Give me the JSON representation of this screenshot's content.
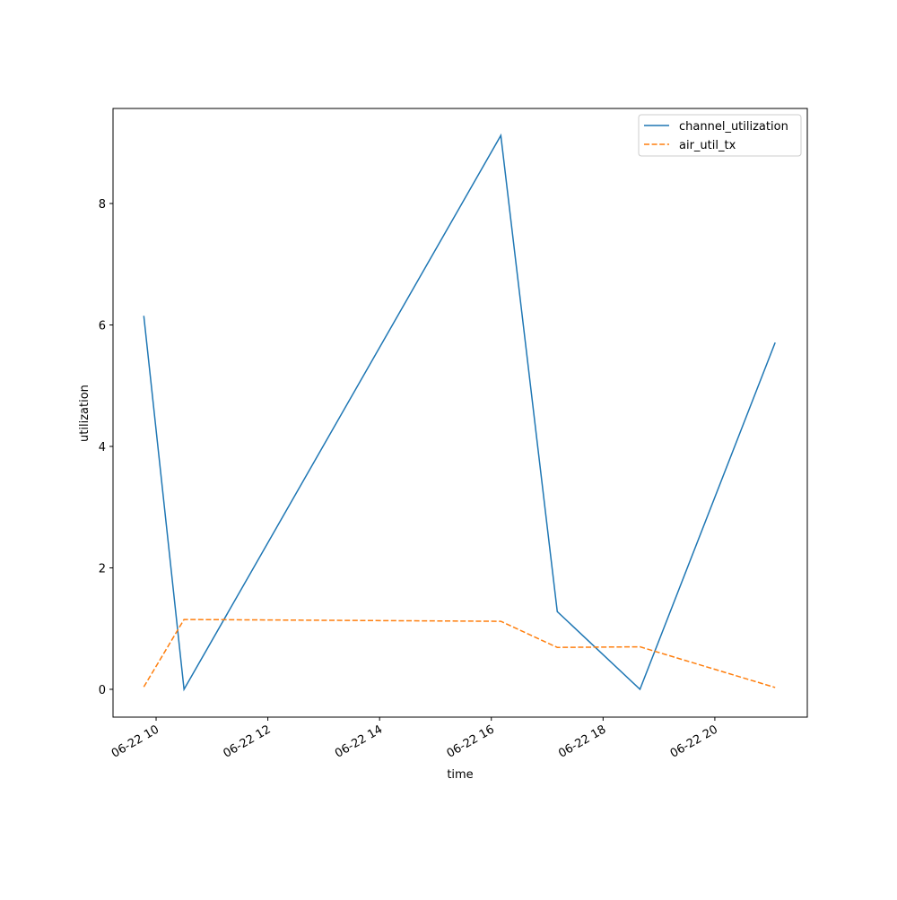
{
  "chart_data": {
    "type": "line",
    "xlabel": "time",
    "ylabel": "utilization",
    "x": [
      9.78,
      10.5,
      16.17,
      17.18,
      18.66,
      21.08
    ],
    "series": [
      {
        "name": "channel_utilization",
        "color": "#1f77b4",
        "dash": "solid",
        "values": [
          6.15,
          0,
          9.12,
          1.28,
          0,
          5.71
        ]
      },
      {
        "name": "air_util_tx",
        "color": "#ff7f0e",
        "dash": "dashed",
        "values": [
          0.04,
          1.15,
          1.12,
          0.69,
          0.7,
          0.03
        ]
      }
    ],
    "xlim": [
      9.229,
      21.655
    ],
    "xticks": [
      {
        "value": 10,
        "label": "06-22 10"
      },
      {
        "value": 12,
        "label": "06-22 12"
      },
      {
        "value": 14,
        "label": "06-22 14"
      },
      {
        "value": 16,
        "label": "06-22 16"
      },
      {
        "value": 18,
        "label": "06-22 18"
      },
      {
        "value": 20,
        "label": "06-22 20"
      }
    ],
    "ylim": [
      -0.458,
      9.565
    ],
    "yticks": [
      0,
      2,
      4,
      6,
      8
    ],
    "legend": "upper right",
    "grid": false
  }
}
